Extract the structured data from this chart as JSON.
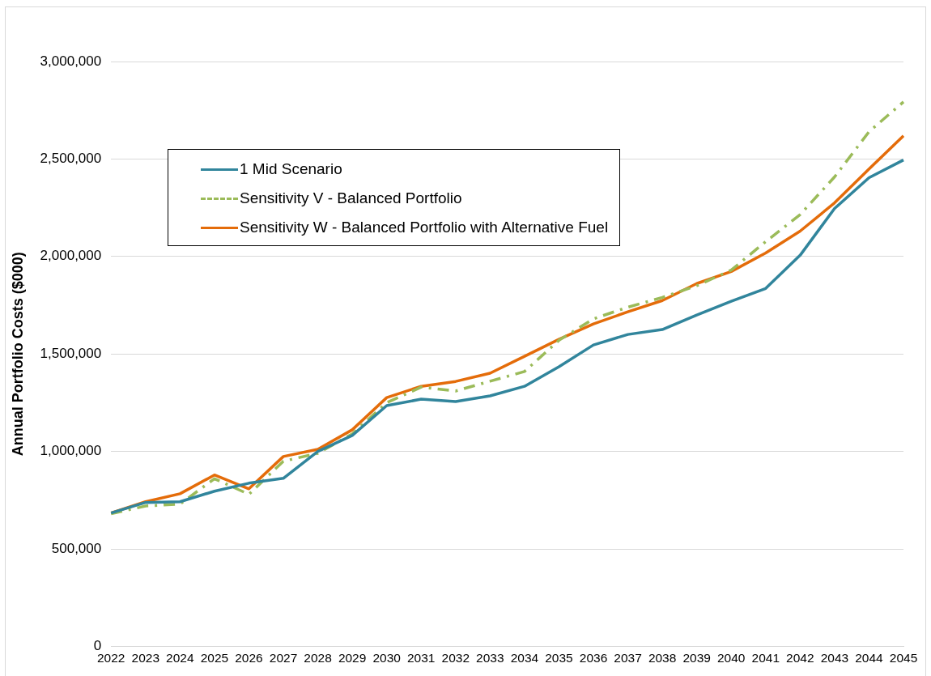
{
  "chart_data": {
    "type": "line",
    "ylabel": "Annual Portfolio Costs ($000)",
    "categories": [
      "2022",
      "2023",
      "2024",
      "2025",
      "2026",
      "2027",
      "2028",
      "2029",
      "2030",
      "2031",
      "2032",
      "2033",
      "2034",
      "2035",
      "2036",
      "2037",
      "2038",
      "2039",
      "2040",
      "2041",
      "2042",
      "2043",
      "2044",
      "2045"
    ],
    "series": [
      {
        "name": "1 Mid Scenario",
        "color": "#31859c",
        "line_style": "solid",
        "values": [
          684000,
          738000,
          742000,
          796000,
          837000,
          862000,
          1000000,
          1082000,
          1235000,
          1268000,
          1256000,
          1285000,
          1334000,
          1434000,
          1546000,
          1600000,
          1625000,
          1700000,
          1770000,
          1836000,
          2006000,
          2246000,
          2404000,
          2495000
        ]
      },
      {
        "name": "Sensitivity V - Balanced Portfolio",
        "color": "#9bbb59",
        "line_style": "dashed",
        "values": [
          680000,
          720000,
          730000,
          860000,
          780000,
          950000,
          990000,
          1090000,
          1250000,
          1330000,
          1310000,
          1360000,
          1410000,
          1570000,
          1680000,
          1740000,
          1790000,
          1850000,
          1930000,
          2076000,
          2215000,
          2408000,
          2640000,
          2793000
        ]
      },
      {
        "name": "Sensitivity W - Balanced Portfolio with Alternative Fuel",
        "color": "#e46c0a",
        "line_style": "solid",
        "values": [
          684000,
          742000,
          783000,
          879000,
          808000,
          974000,
          1011000,
          1111000,
          1276000,
          1334000,
          1359000,
          1401000,
          1488000,
          1575000,
          1654000,
          1716000,
          1774000,
          1861000,
          1923000,
          2018000,
          2130000,
          2275000,
          2449000,
          2619000
        ]
      }
    ],
    "ylim": [
      0,
      3000000
    ],
    "yticks": [
      0,
      {
        "value": 500000,
        "label": "500,000"
      },
      {
        "value": 1000000,
        "label": "1,000,000"
      },
      {
        "value": 1500000,
        "label": "1,500,000"
      },
      {
        "value": 2000000,
        "label": "2,000,000"
      },
      {
        "value": 2500000,
        "label": "2,500,000"
      },
      {
        "value": 3000000,
        "label": "3,000,000"
      }
    ],
    "grid": "y",
    "legend": "top left"
  }
}
